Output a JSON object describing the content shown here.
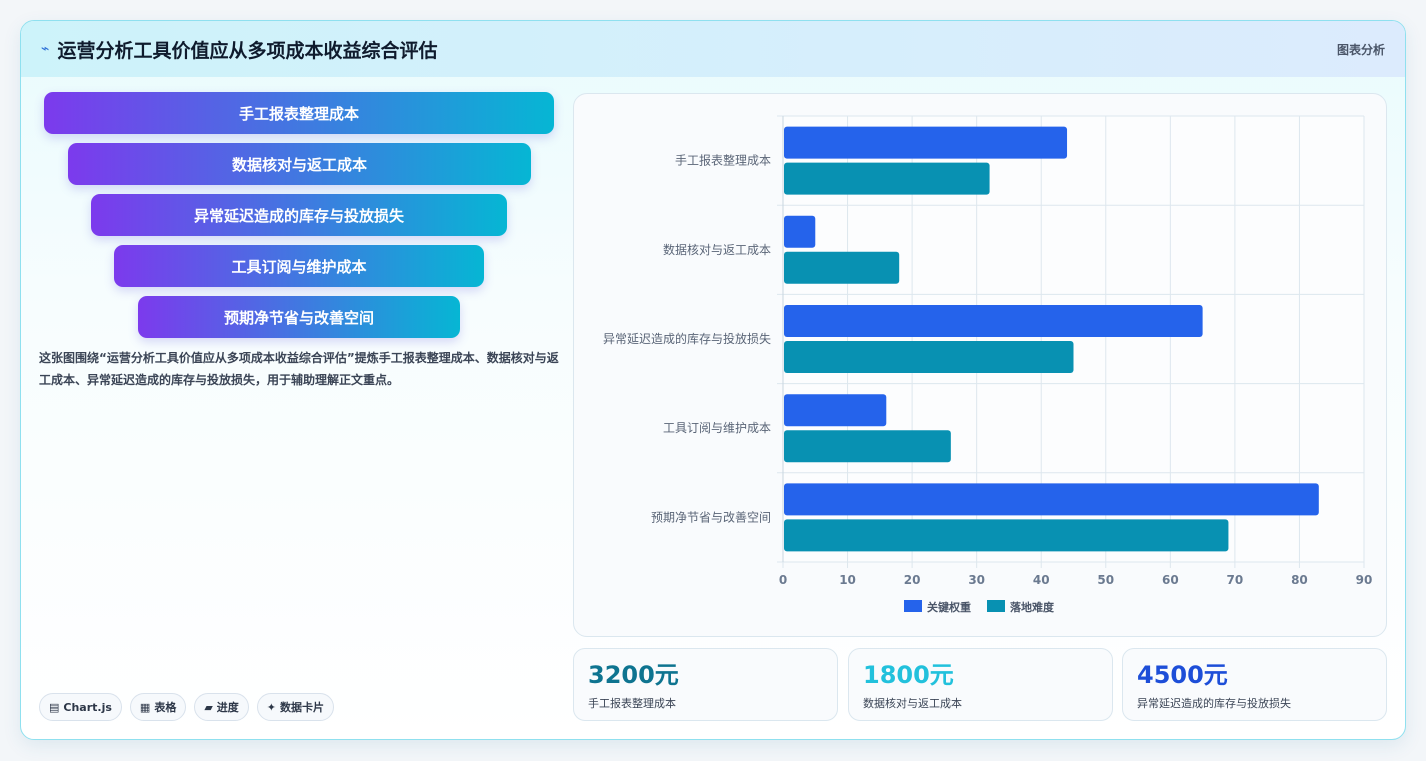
{
  "header": {
    "logo_icon": "spark-icon",
    "logo_glyph": "⌁",
    "title": "运营分析工具价值应从多项成本收益综合评估",
    "tag": "图表分析"
  },
  "funnel": {
    "items": [
      "手工报表整理成本",
      "数据核对与返工成本",
      "异常延迟造成的库存与投放损失",
      "工具订阅与维护成本",
      "预期净节省与改善空间"
    ]
  },
  "description": "这张图围绕“运营分析工具价值应从多项成本收益综合评估”提炼手工报表整理成本、数据核对与返工成本、异常延迟造成的库存与投放损失，用于辅助理解正文重点。",
  "chips": [
    {
      "icon": "chart-icon",
      "glyph": "▤",
      "label": "Chart.js"
    },
    {
      "icon": "table-icon",
      "glyph": "▦",
      "label": "表格"
    },
    {
      "icon": "progress-icon",
      "glyph": "▰",
      "label": "进度"
    },
    {
      "icon": "sparkle-icon",
      "glyph": "✦",
      "label": "数据卡片"
    }
  ],
  "chart_data": {
    "type": "bar",
    "orientation": "horizontal",
    "categories": [
      "手工报表整理成本",
      "数据核对与返工成本",
      "异常延迟造成的库存与投放损失",
      "工具订阅与维护成本",
      "预期净节省与改善空间"
    ],
    "series": [
      {
        "name": "关键权重",
        "color": "#2563eb",
        "values": [
          44,
          5,
          65,
          16,
          83
        ]
      },
      {
        "name": "落地难度",
        "color": "#0891b2",
        "values": [
          32,
          18,
          45,
          26,
          69
        ]
      }
    ],
    "xlim": [
      0,
      90
    ],
    "xticks": [
      0,
      10,
      20,
      30,
      40,
      50,
      60,
      70,
      80,
      90
    ],
    "grid": true,
    "legend": "bottom"
  },
  "stats": [
    {
      "value": "3200元",
      "label": "手工报表整理成本",
      "color": "#0e7490"
    },
    {
      "value": "1800元",
      "label": "数据核对与返工成本",
      "color": "#22c1dc"
    },
    {
      "value": "4500元",
      "label": "异常延迟造成的库存与投放损失",
      "color": "#1d4ed8"
    }
  ]
}
